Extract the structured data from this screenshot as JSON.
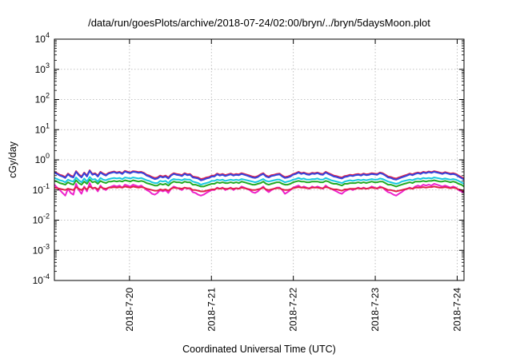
{
  "chart_data": {
    "type": "line",
    "title": "/data/run/goesPlots/archive/2018-07-24/02:00/bryn/../bryn/5daysMoon.plot",
    "xlabel": "Coordinated Universal Time (UTC)",
    "ylabel": "cGy/day",
    "yscale": "log",
    "ylim": [
      0.0001,
      10000
    ],
    "yticks": [
      {
        "value": 0.0001,
        "mantissa": "10",
        "exp": "-4"
      },
      {
        "value": 0.001,
        "mantissa": "10",
        "exp": "-3"
      },
      {
        "value": 0.01,
        "mantissa": "10",
        "exp": "-2"
      },
      {
        "value": 0.1,
        "mantissa": "10",
        "exp": "-1"
      },
      {
        "value": 1,
        "mantissa": "10",
        "exp": "0"
      },
      {
        "value": 10,
        "mantissa": "10",
        "exp": "1"
      },
      {
        "value": 100,
        "mantissa": "10",
        "exp": "2"
      },
      {
        "value": 1000,
        "mantissa": "10",
        "exp": "3"
      },
      {
        "value": 10000,
        "mantissa": "10",
        "exp": "4"
      }
    ],
    "xlim": [
      "2018-07-19 02:00",
      "2018-07-24 02:00"
    ],
    "xticks": [
      "2018-7-20",
      "2018-7-21",
      "2018-7-22",
      "2018-7-23",
      "2018-7-24"
    ],
    "grid": true,
    "series": [
      {
        "color": "#e0204a",
        "values": [
          0.4,
          0.36,
          0.32,
          0.3,
          0.27,
          0.35,
          0.3,
          0.28,
          0.42,
          0.33,
          0.28,
          0.38,
          0.3,
          0.45,
          0.34,
          0.36,
          0.3,
          0.4,
          0.35,
          0.32,
          0.37,
          0.39,
          0.41,
          0.38,
          0.4,
          0.36,
          0.43,
          0.4,
          0.38,
          0.42,
          0.41,
          0.39,
          0.4,
          0.37,
          0.32,
          0.3,
          0.27,
          0.25,
          0.26,
          0.3,
          0.28,
          0.3,
          0.26,
          0.32,
          0.36,
          0.34,
          0.33,
          0.31,
          0.36,
          0.33,
          0.34,
          0.28,
          0.27,
          0.26,
          0.23,
          0.24,
          0.26,
          0.27,
          0.3,
          0.3,
          0.35,
          0.32,
          0.34,
          0.31,
          0.33,
          0.35,
          0.32,
          0.34,
          0.33,
          0.36,
          0.34,
          0.32,
          0.3,
          0.28,
          0.27,
          0.29,
          0.33,
          0.36,
          0.3,
          0.28,
          0.31,
          0.32,
          0.34,
          0.35,
          0.3,
          0.27,
          0.28,
          0.3,
          0.34,
          0.36,
          0.4,
          0.36,
          0.38,
          0.35,
          0.34,
          0.37,
          0.36,
          0.38,
          0.35,
          0.34,
          0.4,
          0.36,
          0.33,
          0.3,
          0.29,
          0.27,
          0.26,
          0.29,
          0.3,
          0.32,
          0.31,
          0.33,
          0.34,
          0.32,
          0.35,
          0.33,
          0.34,
          0.36,
          0.35,
          0.34,
          0.38,
          0.36,
          0.32,
          0.28,
          0.27,
          0.25,
          0.24,
          0.26,
          0.28,
          0.3,
          0.32,
          0.35,
          0.33,
          0.36,
          0.38,
          0.36,
          0.4,
          0.38,
          0.41,
          0.39,
          0.42,
          0.4,
          0.38,
          0.36,
          0.39,
          0.37,
          0.35,
          0.36,
          0.34,
          0.3,
          0.27,
          0.24
        ]
      },
      {
        "color": "#3344dd",
        "values": [
          0.38,
          0.34,
          0.3,
          0.28,
          0.25,
          0.33,
          0.28,
          0.26,
          0.4,
          0.31,
          0.26,
          0.36,
          0.28,
          0.43,
          0.32,
          0.34,
          0.28,
          0.38,
          0.33,
          0.3,
          0.35,
          0.37,
          0.39,
          0.36,
          0.38,
          0.34,
          0.41,
          0.38,
          0.36,
          0.4,
          0.39,
          0.37,
          0.38,
          0.35,
          0.3,
          0.28,
          0.25,
          0.23,
          0.24,
          0.28,
          0.26,
          0.28,
          0.24,
          0.3,
          0.34,
          0.32,
          0.31,
          0.29,
          0.34,
          0.31,
          0.32,
          0.26,
          0.25,
          0.24,
          0.21,
          0.22,
          0.24,
          0.25,
          0.28,
          0.28,
          0.33,
          0.3,
          0.32,
          0.29,
          0.31,
          0.33,
          0.3,
          0.32,
          0.31,
          0.34,
          0.32,
          0.3,
          0.28,
          0.26,
          0.25,
          0.27,
          0.31,
          0.34,
          0.28,
          0.26,
          0.29,
          0.3,
          0.32,
          0.33,
          0.28,
          0.25,
          0.26,
          0.28,
          0.32,
          0.34,
          0.38,
          0.34,
          0.36,
          0.33,
          0.32,
          0.35,
          0.34,
          0.36,
          0.33,
          0.32,
          0.38,
          0.34,
          0.31,
          0.28,
          0.27,
          0.25,
          0.24,
          0.27,
          0.28,
          0.3,
          0.29,
          0.31,
          0.32,
          0.3,
          0.33,
          0.31,
          0.32,
          0.34,
          0.33,
          0.32,
          0.36,
          0.34,
          0.3,
          0.26,
          0.25,
          0.23,
          0.22,
          0.24,
          0.26,
          0.28,
          0.3,
          0.33,
          0.31,
          0.34,
          0.36,
          0.34,
          0.38,
          0.36,
          0.39,
          0.37,
          0.4,
          0.38,
          0.36,
          0.34,
          0.37,
          0.35,
          0.33,
          0.34,
          0.32,
          0.28,
          0.25,
          0.22
        ]
      },
      {
        "color": "#18c8e0",
        "values": [
          0.25,
          0.23,
          0.21,
          0.2,
          0.18,
          0.22,
          0.2,
          0.19,
          0.26,
          0.21,
          0.18,
          0.24,
          0.19,
          0.27,
          0.22,
          0.23,
          0.19,
          0.25,
          0.22,
          0.21,
          0.23,
          0.24,
          0.25,
          0.24,
          0.25,
          0.23,
          0.26,
          0.25,
          0.24,
          0.26,
          0.25,
          0.24,
          0.25,
          0.23,
          0.21,
          0.2,
          0.18,
          0.17,
          0.17,
          0.2,
          0.19,
          0.2,
          0.17,
          0.21,
          0.23,
          0.22,
          0.22,
          0.21,
          0.23,
          0.22,
          0.22,
          0.19,
          0.18,
          0.17,
          0.15,
          0.16,
          0.17,
          0.18,
          0.2,
          0.2,
          0.22,
          0.21,
          0.22,
          0.2,
          0.21,
          0.22,
          0.21,
          0.22,
          0.21,
          0.23,
          0.22,
          0.21,
          0.2,
          0.19,
          0.18,
          0.19,
          0.21,
          0.23,
          0.2,
          0.19,
          0.2,
          0.21,
          0.22,
          0.22,
          0.2,
          0.18,
          0.19,
          0.2,
          0.22,
          0.23,
          0.25,
          0.23,
          0.24,
          0.22,
          0.22,
          0.23,
          0.23,
          0.24,
          0.22,
          0.22,
          0.25,
          0.23,
          0.21,
          0.2,
          0.19,
          0.18,
          0.17,
          0.19,
          0.2,
          0.21,
          0.2,
          0.21,
          0.22,
          0.21,
          0.22,
          0.21,
          0.22,
          0.23,
          0.22,
          0.22,
          0.24,
          0.23,
          0.21,
          0.19,
          0.18,
          0.17,
          0.16,
          0.17,
          0.19,
          0.2,
          0.21,
          0.22,
          0.21,
          0.23,
          0.24,
          0.23,
          0.25,
          0.24,
          0.25,
          0.24,
          0.26,
          0.25,
          0.24,
          0.23,
          0.24,
          0.23,
          0.22,
          0.23,
          0.22,
          0.2,
          0.18,
          0.16
        ]
      },
      {
        "color": "#22aa22",
        "values": [
          0.2,
          0.19,
          0.17,
          0.16,
          0.15,
          0.18,
          0.16,
          0.15,
          0.21,
          0.17,
          0.15,
          0.19,
          0.16,
          0.22,
          0.18,
          0.19,
          0.16,
          0.2,
          0.18,
          0.17,
          0.19,
          0.19,
          0.2,
          0.19,
          0.2,
          0.19,
          0.21,
          0.2,
          0.19,
          0.21,
          0.2,
          0.19,
          0.2,
          0.19,
          0.17,
          0.16,
          0.15,
          0.14,
          0.14,
          0.16,
          0.15,
          0.16,
          0.14,
          0.17,
          0.19,
          0.18,
          0.18,
          0.17,
          0.19,
          0.18,
          0.18,
          0.15,
          0.15,
          0.14,
          0.13,
          0.13,
          0.14,
          0.15,
          0.16,
          0.16,
          0.18,
          0.17,
          0.18,
          0.17,
          0.17,
          0.18,
          0.17,
          0.18,
          0.17,
          0.19,
          0.18,
          0.17,
          0.16,
          0.15,
          0.15,
          0.16,
          0.17,
          0.19,
          0.16,
          0.15,
          0.16,
          0.17,
          0.18,
          0.18,
          0.16,
          0.15,
          0.15,
          0.16,
          0.18,
          0.19,
          0.2,
          0.19,
          0.19,
          0.18,
          0.18,
          0.19,
          0.19,
          0.19,
          0.18,
          0.18,
          0.2,
          0.19,
          0.17,
          0.16,
          0.16,
          0.15,
          0.14,
          0.16,
          0.16,
          0.17,
          0.17,
          0.17,
          0.18,
          0.17,
          0.18,
          0.17,
          0.18,
          0.19,
          0.18,
          0.18,
          0.19,
          0.19,
          0.17,
          0.15,
          0.15,
          0.14,
          0.13,
          0.14,
          0.15,
          0.16,
          0.17,
          0.18,
          0.17,
          0.19,
          0.19,
          0.19,
          0.2,
          0.19,
          0.2,
          0.2,
          0.21,
          0.2,
          0.19,
          0.19,
          0.2,
          0.19,
          0.18,
          0.19,
          0.18,
          0.16,
          0.15,
          0.13
        ]
      },
      {
        "color": "#ee22cc",
        "values": [
          0.15,
          0.12,
          0.1,
          0.08,
          0.065,
          0.11,
          0.08,
          0.07,
          0.16,
          0.1,
          0.075,
          0.13,
          0.09,
          0.17,
          0.11,
          0.12,
          0.09,
          0.14,
          0.11,
          0.1,
          0.12,
          0.13,
          0.14,
          0.13,
          0.14,
          0.12,
          0.15,
          0.14,
          0.13,
          0.15,
          0.14,
          0.13,
          0.14,
          0.12,
          0.1,
          0.09,
          0.075,
          0.07,
          0.08,
          0.1,
          0.09,
          0.1,
          0.08,
          0.11,
          0.13,
          0.12,
          0.11,
          0.1,
          0.12,
          0.11,
          0.115,
          0.085,
          0.08,
          0.07,
          0.065,
          0.07,
          0.08,
          0.09,
          0.1,
          0.1,
          0.12,
          0.11,
          0.12,
          0.1,
          0.11,
          0.12,
          0.1,
          0.115,
          0.11,
          0.13,
          0.12,
          0.11,
          0.1,
          0.085,
          0.08,
          0.09,
          0.11,
          0.13,
          0.1,
          0.085,
          0.1,
          0.11,
          0.12,
          0.12,
          0.1,
          0.075,
          0.085,
          0.1,
          0.12,
          0.13,
          0.14,
          0.12,
          0.13,
          0.12,
          0.11,
          0.13,
          0.12,
          0.13,
          0.12,
          0.11,
          0.14,
          0.12,
          0.11,
          0.1,
          0.09,
          0.08,
          0.075,
          0.09,
          0.1,
          0.11,
          0.1,
          0.11,
          0.12,
          0.11,
          0.12,
          0.11,
          0.115,
          0.13,
          0.12,
          0.11,
          0.13,
          0.12,
          0.1,
          0.085,
          0.08,
          0.07,
          0.065,
          0.075,
          0.085,
          0.1,
          0.11,
          0.12,
          0.11,
          0.13,
          0.14,
          0.13,
          0.15,
          0.14,
          0.15,
          0.14,
          0.16,
          0.15,
          0.14,
          0.13,
          0.14,
          0.13,
          0.12,
          0.13,
          0.12,
          0.1,
          0.09,
          0.08
        ]
      },
      {
        "color": "#e0204a",
        "values": [
          0.12,
          0.115,
          0.11,
          0.105,
          0.1,
          0.11,
          0.105,
          0.1,
          0.125,
          0.11,
          0.1,
          0.12,
          0.105,
          0.13,
          0.115,
          0.12,
          0.105,
          0.125,
          0.115,
          0.11,
          0.12,
          0.12,
          0.125,
          0.12,
          0.125,
          0.12,
          0.13,
          0.125,
          0.12,
          0.13,
          0.125,
          0.12,
          0.125,
          0.12,
          0.11,
          0.105,
          0.1,
          0.095,
          0.095,
          0.105,
          0.1,
          0.105,
          0.095,
          0.11,
          0.12,
          0.115,
          0.115,
          0.11,
          0.12,
          0.115,
          0.115,
          0.1,
          0.1,
          0.095,
          0.09,
          0.09,
          0.095,
          0.1,
          0.105,
          0.105,
          0.115,
          0.11,
          0.115,
          0.11,
          0.11,
          0.115,
          0.11,
          0.115,
          0.11,
          0.12,
          0.115,
          0.11,
          0.105,
          0.1,
          0.1,
          0.105,
          0.11,
          0.12,
          0.105,
          0.1,
          0.105,
          0.11,
          0.115,
          0.115,
          0.105,
          0.1,
          0.1,
          0.105,
          0.115,
          0.12,
          0.125,
          0.12,
          0.12,
          0.115,
          0.115,
          0.12,
          0.12,
          0.12,
          0.115,
          0.115,
          0.125,
          0.12,
          0.11,
          0.105,
          0.105,
          0.1,
          0.095,
          0.105,
          0.105,
          0.11,
          0.11,
          0.11,
          0.115,
          0.11,
          0.115,
          0.11,
          0.115,
          0.12,
          0.115,
          0.115,
          0.12,
          0.12,
          0.11,
          0.1,
          0.1,
          0.095,
          0.09,
          0.095,
          0.1,
          0.105,
          0.11,
          0.115,
          0.11,
          0.12,
          0.12,
          0.12,
          0.125,
          0.12,
          0.125,
          0.125,
          0.13,
          0.125,
          0.12,
          0.12,
          0.125,
          0.12,
          0.115,
          0.12,
          0.115,
          0.105,
          0.1,
          0.09
        ]
      }
    ]
  }
}
